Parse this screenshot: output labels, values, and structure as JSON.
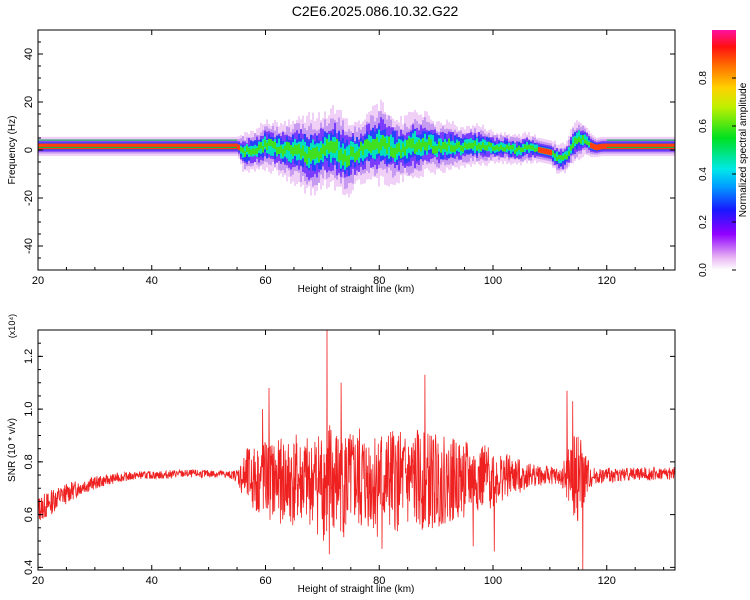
{
  "title": "C2E6.2025.086.10.32.G22",
  "chart_data": [
    {
      "type": "heatmap",
      "xlabel": "Height of straight line (km)",
      "ylabel": "Frequency (Hz)",
      "xlim": [
        20,
        132
      ],
      "ylim": [
        -50,
        50
      ],
      "x_ticks": [
        "20",
        "40",
        "60",
        "80",
        "100",
        "120"
      ],
      "x_tick_values": [
        20,
        40,
        60,
        80,
        100,
        120
      ],
      "y_ticks": [
        "40",
        "20",
        "0",
        "-20",
        "-40"
      ],
      "y_tick_values": [
        40,
        20,
        0,
        -20,
        -40
      ],
      "colorbar": {
        "label": "Normalized spectral amplitude",
        "ticks": [
          "0.0",
          "0.2",
          "0.4",
          "0.6",
          "0.8"
        ],
        "tick_values": [
          0.0,
          0.2,
          0.4,
          0.6,
          0.8
        ],
        "range": [
          0,
          1
        ]
      },
      "ridge": {
        "x": [
          20,
          30,
          40,
          50,
          55,
          56,
          58,
          60,
          62,
          64,
          66,
          68,
          70,
          72,
          74,
          76,
          78,
          80,
          82,
          84,
          86,
          88,
          90,
          92,
          94,
          96,
          98,
          100,
          102,
          104,
          106,
          108,
          110,
          111,
          112,
          113,
          114,
          115,
          116,
          117,
          118,
          119,
          120,
          125,
          132
        ],
        "freq": [
          1.5,
          1.5,
          1.5,
          1.5,
          1.5,
          -1,
          0,
          2,
          1,
          0,
          -1,
          -2,
          0,
          1,
          -3,
          -1,
          2,
          3,
          1,
          0,
          2,
          3,
          1,
          2,
          1,
          2,
          2,
          1,
          1,
          0,
          1,
          0,
          -1,
          -3,
          -4,
          -2,
          3,
          5,
          4,
          2,
          1,
          1.5,
          1.5,
          1.5,
          1.5
        ],
        "spread": [
          2,
          2,
          2,
          2,
          2,
          4,
          4,
          5,
          5,
          6,
          7,
          8,
          7,
          8,
          8,
          6,
          7,
          8,
          7,
          6,
          7,
          6,
          5,
          5,
          4,
          4,
          4,
          3,
          3,
          3,
          3,
          2.5,
          2.5,
          3,
          3,
          3,
          4,
          4,
          3,
          2.5,
          2,
          2,
          2,
          2,
          2
        ]
      }
    },
    {
      "type": "line",
      "xlabel": "Height of straight line (km)",
      "ylabel": "SNR (10 * v/v)",
      "y_scale_label": "(x10⁴)",
      "xlim": [
        20,
        132
      ],
      "ylim": [
        0.39,
        1.3
      ],
      "x_ticks": [
        "20",
        "40",
        "60",
        "80",
        "100",
        "120"
      ],
      "x_tick_values": [
        20,
        40,
        60,
        80,
        100,
        120
      ],
      "y_ticks": [
        "0.4",
        "0.6",
        "0.8",
        "1.0",
        "1.2"
      ],
      "y_tick_values": [
        0.4,
        0.6,
        0.8,
        1.0,
        1.2
      ],
      "series": [
        {
          "color": "#ef2020",
          "x": [
            20,
            21,
            22,
            23,
            24,
            25,
            26,
            28,
            30,
            32,
            34,
            36,
            38,
            40,
            42,
            44,
            46,
            48,
            50,
            52,
            54,
            55,
            56,
            57,
            58,
            59,
            60,
            61,
            62,
            63,
            64,
            65,
            66,
            67,
            68,
            69,
            70,
            71,
            72,
            73,
            74,
            75,
            76,
            77,
            78,
            79,
            80,
            81,
            82,
            83,
            84,
            85,
            86,
            87,
            88,
            89,
            90,
            91,
            92,
            93,
            94,
            95,
            96,
            97,
            98,
            99,
            100,
            101,
            102,
            103,
            104,
            105,
            106,
            107,
            108,
            109,
            110,
            111,
            112,
            113,
            114,
            115,
            116,
            117,
            118,
            119,
            120,
            122,
            124,
            126,
            128,
            130,
            132
          ],
          "mean": [
            0.62,
            0.63,
            0.64,
            0.66,
            0.67,
            0.68,
            0.69,
            0.71,
            0.72,
            0.73,
            0.74,
            0.745,
            0.75,
            0.75,
            0.75,
            0.755,
            0.755,
            0.755,
            0.755,
            0.755,
            0.75,
            0.75,
            0.74,
            0.74,
            0.735,
            0.73,
            0.735,
            0.73,
            0.725,
            0.73,
            0.72,
            0.73,
            0.725,
            0.72,
            0.72,
            0.73,
            0.72,
            0.725,
            0.72,
            0.73,
            0.72,
            0.725,
            0.73,
            0.72,
            0.73,
            0.725,
            0.73,
            0.72,
            0.73,
            0.725,
            0.73,
            0.72,
            0.73,
            0.725,
            0.73,
            0.725,
            0.73,
            0.73,
            0.73,
            0.73,
            0.735,
            0.73,
            0.735,
            0.735,
            0.74,
            0.74,
            0.74,
            0.74,
            0.745,
            0.745,
            0.745,
            0.745,
            0.75,
            0.75,
            0.75,
            0.745,
            0.75,
            0.745,
            0.74,
            0.74,
            0.74,
            0.74,
            0.74,
            0.745,
            0.745,
            0.745,
            0.75,
            0.75,
            0.755,
            0.755,
            0.755,
            0.755,
            0.755
          ],
          "amplitude": [
            0.05,
            0.05,
            0.05,
            0.045,
            0.04,
            0.04,
            0.035,
            0.03,
            0.025,
            0.02,
            0.018,
            0.016,
            0.015,
            0.015,
            0.015,
            0.015,
            0.015,
            0.015,
            0.015,
            0.015,
            0.015,
            0.025,
            0.08,
            0.12,
            0.13,
            0.14,
            0.15,
            0.16,
            0.15,
            0.17,
            0.18,
            0.18,
            0.17,
            0.18,
            0.16,
            0.2,
            0.22,
            0.25,
            0.22,
            0.2,
            0.22,
            0.18,
            0.2,
            0.22,
            0.18,
            0.2,
            0.22,
            0.18,
            0.2,
            0.2,
            0.18,
            0.2,
            0.19,
            0.2,
            0.18,
            0.19,
            0.18,
            0.17,
            0.16,
            0.16,
            0.15,
            0.15,
            0.14,
            0.13,
            0.13,
            0.12,
            0.12,
            0.1,
            0.09,
            0.08,
            0.07,
            0.06,
            0.05,
            0.045,
            0.04,
            0.04,
            0.035,
            0.035,
            0.03,
            0.1,
            0.15,
            0.18,
            0.12,
            0.05,
            0.03,
            0.03,
            0.03,
            0.025,
            0.025,
            0.025,
            0.025,
            0.025,
            0.025
          ],
          "peaks": [
            {
              "x": 59.5,
              "y": 1.0
            },
            {
              "x": 60.6,
              "y": 1.08
            },
            {
              "x": 70.8,
              "y": 1.3
            },
            {
              "x": 71.2,
              "y": 0.45
            },
            {
              "x": 73.3,
              "y": 1.1
            },
            {
              "x": 80.5,
              "y": 0.47
            },
            {
              "x": 88.0,
              "y": 1.13
            },
            {
              "x": 96.5,
              "y": 0.48
            },
            {
              "x": 100.2,
              "y": 0.46
            },
            {
              "x": 113.0,
              "y": 1.07
            },
            {
              "x": 114.0,
              "y": 1.03
            },
            {
              "x": 115.8,
              "y": 0.39
            }
          ]
        }
      ]
    }
  ]
}
